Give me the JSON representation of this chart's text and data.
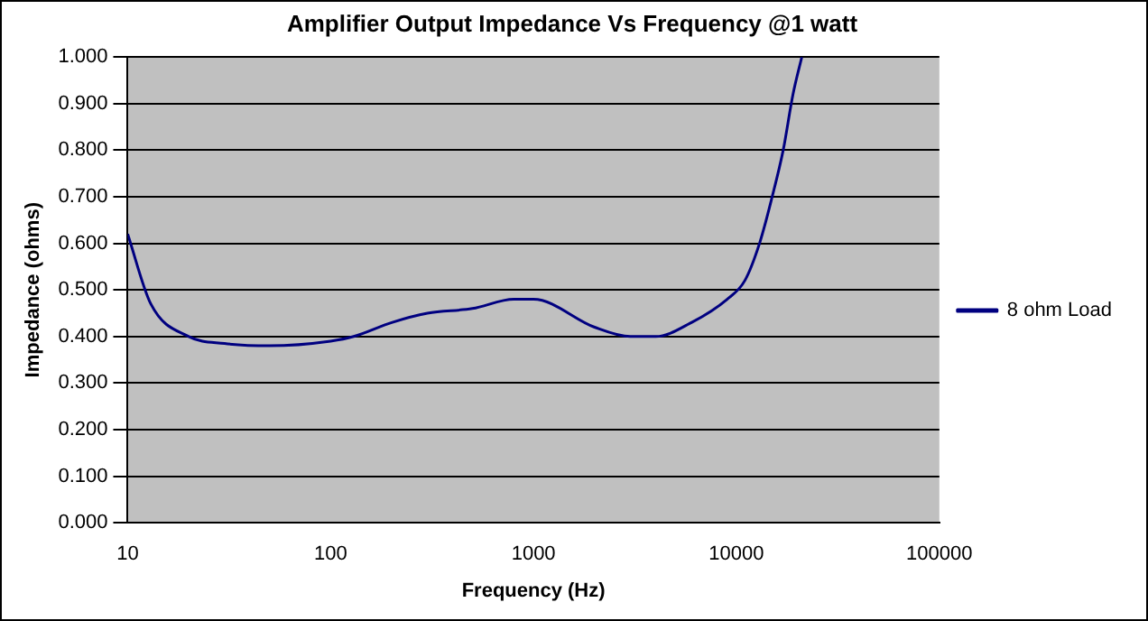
{
  "chart_data": {
    "type": "line",
    "title": "Amplifier Output Impedance Vs Frequency @1 watt",
    "xlabel": "Frequency (Hz)",
    "ylabel": "Impedance (ohms)",
    "log": "x",
    "grid": "y",
    "legend": "right",
    "marker": "none",
    "line_style": "solid",
    "xlim": [
      10,
      100000
    ],
    "xticks": [
      10,
      100,
      1000,
      10000,
      100000
    ],
    "ylim": [
      0,
      1
    ],
    "yticks": [
      {
        "value": 0,
        "label": "0.000"
      },
      {
        "value": 0.1,
        "label": "0.100"
      },
      {
        "value": 0.2,
        "label": "0.200"
      },
      {
        "value": 0.3,
        "label": "0.300"
      },
      {
        "value": 0.4,
        "label": "0.400"
      },
      {
        "value": 0.5,
        "label": "0.500"
      },
      {
        "value": 0.6,
        "label": "0.600"
      },
      {
        "value": 0.7,
        "label": "0.700"
      },
      {
        "value": 0.8,
        "label": "0.800"
      },
      {
        "value": 0.9,
        "label": "0.900"
      },
      {
        "value": 1,
        "label": "1.000"
      }
    ],
    "x": [
      10,
      13,
      20,
      30,
      50,
      100,
      130,
      200,
      300,
      500,
      800,
      1000,
      2000,
      3000,
      4000,
      6000,
      9000,
      11000,
      13000,
      15000,
      17000,
      19000,
      21000
    ],
    "series": [
      {
        "name": "8 ohm Load",
        "color": "#000080",
        "values": [
          0.62,
          0.47,
          0.4,
          0.385,
          0.38,
          0.39,
          0.4,
          0.43,
          0.45,
          0.46,
          0.48,
          0.48,
          0.42,
          0.4,
          0.4,
          0.43,
          0.48,
          0.52,
          0.6,
          0.7,
          0.8,
          0.92,
          1.0
        ]
      }
    ]
  }
}
